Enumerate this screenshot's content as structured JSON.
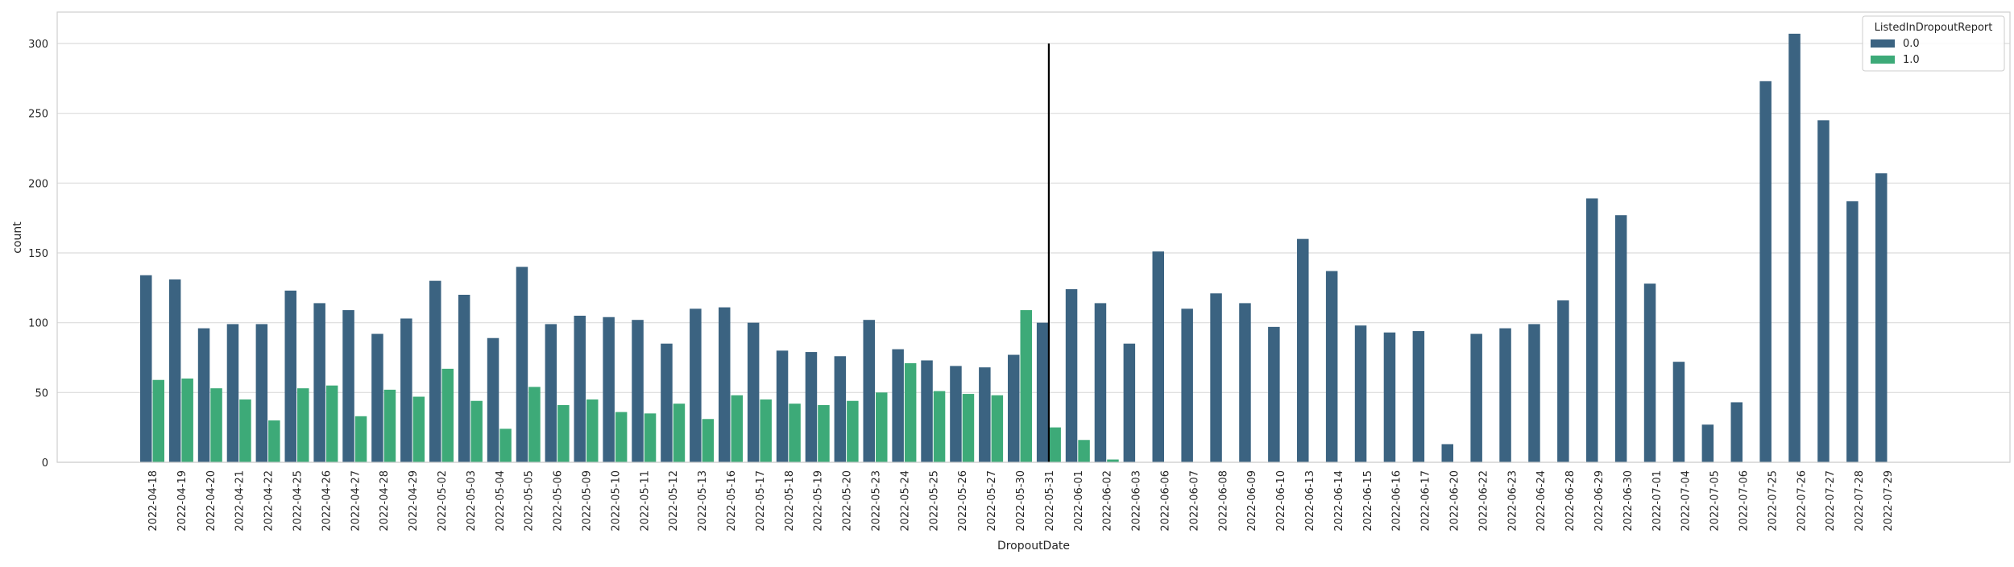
{
  "chart_data": {
    "type": "bar",
    "title": "",
    "xlabel": "DropoutDate",
    "ylabel": "count",
    "ylim": [
      0,
      320
    ],
    "yticks": [
      0,
      50,
      100,
      150,
      200,
      250,
      300
    ],
    "grid": true,
    "legend": {
      "title": "ListedInDropoutReport",
      "placement": "top-right"
    },
    "categories": [
      "2022-04-18",
      "2022-04-19",
      "2022-04-20",
      "2022-04-21",
      "2022-04-22",
      "2022-04-25",
      "2022-04-26",
      "2022-04-27",
      "2022-04-28",
      "2022-04-29",
      "2022-05-02",
      "2022-05-03",
      "2022-05-04",
      "2022-05-05",
      "2022-05-06",
      "2022-05-09",
      "2022-05-10",
      "2022-05-11",
      "2022-05-12",
      "2022-05-13",
      "2022-05-16",
      "2022-05-17",
      "2022-05-18",
      "2022-05-19",
      "2022-05-20",
      "2022-05-23",
      "2022-05-24",
      "2022-05-25",
      "2022-05-26",
      "2022-05-27",
      "2022-05-30",
      "2022-05-31",
      "2022-06-01",
      "2022-06-02",
      "2022-06-03",
      "2022-06-06",
      "2022-06-07",
      "2022-06-08",
      "2022-06-09",
      "2022-06-10",
      "2022-06-13",
      "2022-06-14",
      "2022-06-15",
      "2022-06-16",
      "2022-06-17",
      "2022-06-20",
      "2022-06-22",
      "2022-06-23",
      "2022-06-24",
      "2022-06-28",
      "2022-06-29",
      "2022-06-30",
      "2022-07-01",
      "2022-07-04",
      "2022-07-05",
      "2022-07-06",
      "2022-07-25",
      "2022-07-26",
      "2022-07-27",
      "2022-07-28",
      "2022-07-29"
    ],
    "series": [
      {
        "name": "0.0",
        "color": "#3b6381",
        "values": [
          134,
          131,
          96,
          99,
          99,
          123,
          114,
          109,
          92,
          103,
          130,
          120,
          89,
          140,
          99,
          105,
          104,
          102,
          85,
          110,
          111,
          100,
          80,
          79,
          76,
          102,
          81,
          73,
          69,
          68,
          77,
          100,
          124,
          114,
          85,
          151,
          110,
          121,
          114,
          97,
          160,
          137,
          98,
          93,
          94,
          13,
          92,
          96,
          99,
          116,
          189,
          177,
          128,
          72,
          27,
          43,
          273,
          307,
          245,
          187,
          207
        ]
      },
      {
        "name": "1.0",
        "color": "#3daa78",
        "values": [
          59,
          60,
          53,
          45,
          30,
          53,
          55,
          33,
          52,
          47,
          67,
          44,
          24,
          54,
          41,
          45,
          36,
          35,
          42,
          31,
          48,
          45,
          42,
          41,
          44,
          50,
          71,
          51,
          49,
          48,
          109,
          25,
          16,
          2,
          0,
          0,
          0,
          0,
          0,
          0,
          0,
          0,
          0,
          0,
          0,
          0,
          0,
          0,
          0,
          0,
          0,
          0,
          0,
          0,
          0,
          0,
          0,
          0,
          0,
          0,
          0
        ]
      }
    ],
    "reference_line": {
      "category": "2022-05-31",
      "from": 0,
      "to": 300,
      "color": "#000000"
    }
  }
}
